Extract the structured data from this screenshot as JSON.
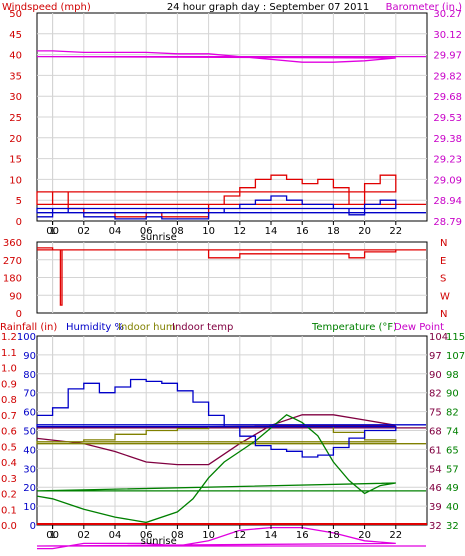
{
  "chart_data": [
    {
      "type": "line",
      "title": "24 hour graph day : September 07 2011",
      "ylabel_left": "Windspeed (mph)",
      "ylabel_right": "Barometer (in.)",
      "x_ticks": [
        "00",
        "02",
        "04",
        "06",
        "08",
        "10",
        "12",
        "14",
        "16",
        "18",
        "20",
        "22",
        "1"
      ],
      "annotations": [
        "sunrise"
      ],
      "ylim_left": [
        0,
        50
      ],
      "yticks_left": [
        "0",
        "5",
        "10",
        "15",
        "20",
        "25",
        "30",
        "35",
        "40",
        "45",
        "50"
      ],
      "ylim_right": [
        28.79,
        30.27
      ],
      "yticks_right": [
        "28.79",
        "28.94",
        "29.09",
        "29.23",
        "29.38",
        "29.53",
        "29.68",
        "29.82",
        "29.97",
        "30.12",
        "30.27"
      ],
      "grid": true,
      "colors": {
        "gust": "#e00000",
        "average": "#0000c8",
        "barometer": "#e000e0",
        "left_axis": "#d00000",
        "right_axis": "#c800c8"
      },
      "series": [
        {
          "axis": "left",
          "x": [
            23,
            0,
            1,
            2,
            3,
            4,
            5,
            6,
            7,
            8,
            9,
            10,
            11,
            12,
            13,
            14,
            15,
            16,
            17,
            18,
            19,
            20,
            21,
            22,
            23
          ],
          "values": [
            4,
            7,
            3,
            2,
            2,
            1,
            1,
            2,
            1,
            1,
            1,
            4,
            6,
            8,
            10,
            11,
            10,
            9,
            10,
            8,
            4,
            9,
            11,
            7,
            4
          ]
        },
        {
          "axis": "left",
          "x": [
            23,
            0,
            1,
            2,
            3,
            4,
            5,
            6,
            7,
            8,
            9,
            10,
            11,
            12,
            13,
            14,
            15,
            16,
            17,
            18,
            19,
            20,
            21,
            22,
            23
          ],
          "values": [
            1,
            3,
            2,
            1,
            1,
            0.5,
            0.5,
            1,
            0.5,
            0.5,
            0.5,
            2,
            3,
            4,
            5,
            6,
            5,
            4,
            4,
            3,
            1.5,
            4,
            5,
            3,
            2
          ]
        },
        {
          "axis": "right",
          "x": [
            23,
            0,
            2,
            4,
            6,
            8,
            10,
            12,
            14,
            16,
            18,
            20,
            22,
            23
          ],
          "values": [
            30.0,
            30.0,
            29.99,
            29.99,
            29.99,
            29.98,
            29.98,
            29.96,
            29.94,
            29.92,
            29.92,
            29.93,
            29.95,
            29.96
          ]
        }
      ]
    },
    {
      "type": "line",
      "ylim": [
        0,
        360
      ],
      "yticks_left": [
        "0",
        "90",
        "180",
        "270",
        "360"
      ],
      "yticks_right": [
        "N",
        "W",
        "S",
        "E",
        "N"
      ],
      "grid": true,
      "series": [
        {
          "x": [
            23,
            0,
            0.5,
            0.6,
            1,
            5,
            9.8,
            10,
            12,
            16,
            18,
            19,
            20,
            22,
            23
          ],
          "values": [
            330,
            320,
            40,
            320,
            320,
            320,
            320,
            280,
            300,
            300,
            300,
            280,
            310,
            320,
            320
          ]
        }
      ]
    },
    {
      "type": "line",
      "ylabel_left_1": "Rainfall (in)",
      "ylabel_left_2": "Humidity %",
      "ylabel_left_3": "Indoor hum",
      "ylabel_left_4": "Indoor temp",
      "ylabel_right_1": "Temperature (°F)",
      "ylabel_right_2": "Dew Point",
      "yticks_rain": [
        "0.0",
        "0.1",
        "0.2",
        "0.3",
        "0.4",
        "0.5",
        "0.6",
        "0.7",
        "0.8",
        "0.9",
        "1.0",
        "1.1",
        "1.2"
      ],
      "yticks_humidity": [
        "0",
        "10",
        "20",
        "30",
        "40",
        "50",
        "60",
        "70",
        "80",
        "90",
        "100"
      ],
      "yticks_temp_1": [
        "32",
        "39",
        "46",
        "54",
        "61",
        "68",
        "75",
        "82",
        "90",
        "97",
        "104"
      ],
      "yticks_temp_2": [
        "32",
        "40",
        "49",
        "57",
        "65",
        "74",
        "82",
        "90",
        "98",
        "107",
        "115"
      ],
      "ylim_humidity": [
        0,
        100
      ],
      "x_ticks": [
        "00",
        "02",
        "04",
        "06",
        "08",
        "10",
        "12",
        "14",
        "16",
        "18",
        "20",
        "22",
        "1"
      ],
      "annotations": [
        "sunrise"
      ],
      "grid": true,
      "series": [
        {
          "name": "Humidity %",
          "x": [
            23,
            0,
            1,
            2,
            3,
            4,
            5,
            6,
            7,
            8,
            9,
            10,
            11,
            12,
            13,
            14,
            15,
            16,
            17,
            18,
            19,
            20,
            21,
            22,
            23
          ],
          "values": [
            58,
            62,
            72,
            75,
            70,
            73,
            77,
            76,
            75,
            71,
            65,
            58,
            52,
            47,
            42,
            40,
            39,
            36,
            37,
            41,
            46,
            50,
            50,
            52,
            53
          ]
        },
        {
          "name": "Indoor hum",
          "x": [
            23,
            2,
            4,
            6,
            8,
            10,
            12,
            14,
            16,
            18,
            20,
            22,
            23
          ],
          "values": [
            44,
            45,
            48,
            50,
            51,
            52,
            52,
            52,
            52,
            49,
            45,
            44,
            43
          ]
        },
        {
          "name": "Indoor temp",
          "x": [
            23,
            2,
            4,
            6,
            8,
            9,
            10,
            12,
            14,
            16,
            18,
            20,
            22,
            23
          ],
          "values": [
            65,
            63,
            60,
            56,
            55,
            55,
            55,
            63,
            70,
            74,
            74,
            72,
            70,
            69
          ]
        },
        {
          "name": "Temperature (°F)",
          "x": [
            23,
            0,
            2,
            4,
            6,
            8,
            9,
            10,
            11,
            12,
            13,
            14,
            15,
            16,
            17,
            18,
            19,
            20,
            21,
            22,
            23
          ],
          "values": [
            43,
            42,
            38,
            35,
            33,
            37,
            42,
            50,
            56,
            60,
            64,
            69,
            74,
            71,
            66,
            56,
            49,
            44,
            47,
            48,
            45
          ]
        },
        {
          "name": "Dew Point",
          "x": [
            23,
            0,
            2,
            4,
            6,
            8,
            10,
            12,
            14,
            16,
            18,
            20,
            22,
            23
          ],
          "values": [
            23,
            23,
            25,
            25,
            25,
            24,
            26,
            30,
            31,
            31,
            29,
            26,
            25,
            24
          ]
        }
      ]
    }
  ]
}
